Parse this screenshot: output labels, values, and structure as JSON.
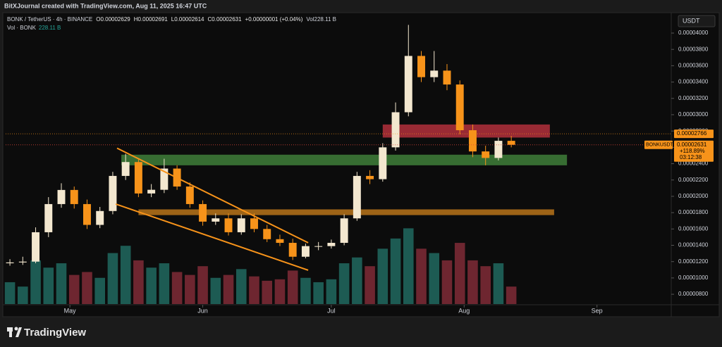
{
  "chart_data": {
    "type": "candlestick",
    "title": "BitXJournal created with TradingView.com, Aug 11, 2025 16:47 UTC",
    "symbol": "BONK / TetherUS · 4h · BINANCE",
    "legend": [
      "O0.00002629",
      "H0.00002691",
      "L0.00002614",
      "C0.00002631",
      "+0.00000001 (+0.04%)",
      "Vol228.11 B"
    ],
    "volume_label": "Vol · BONK",
    "volume_value": "228.11 B",
    "currency": "USDT",
    "brand": "TradingView",
    "up_color": "#f3e7cf",
    "down_color": "#f7931a",
    "volume_up_color": "#1d5b53",
    "volume_down_color": "#6e2630",
    "x": [
      -14,
      -11,
      -8,
      -5,
      -2,
      1,
      4,
      7,
      10,
      13,
      16,
      19,
      22,
      25,
      28,
      31,
      34,
      37,
      40,
      43,
      46,
      49,
      52,
      55,
      58,
      61,
      64,
      67,
      70,
      73,
      76,
      79,
      82,
      85,
      88,
      91,
      94,
      97,
      100,
      103
    ],
    "open": [
      1.18e-05,
      1.19e-05,
      1.2e-05,
      1.56e-05,
      1.905e-05,
      2.078e-05,
      1.905e-05,
      1.65e-05,
      1.82e-05,
      2.25e-05,
      2.42e-05,
      2.035e-05,
      2.08e-05,
      2.34e-05,
      2.12e-05,
      1.905e-05,
      1.69e-05,
      1.73e-05,
      1.56e-05,
      1.73e-05,
      1.6e-05,
      1.475e-05,
      1.43e-05,
      1.26e-05,
      1.39e-05,
      1.39e-05,
      1.43e-05,
      1.73e-05,
      2.25e-05,
      2.21e-05,
      2.6e-05,
      3.03e-05,
      3.72e-05,
      3.46e-05,
      3.54e-05,
      3.37e-05,
      2.81e-05,
      2.55e-05,
      2.47e-05,
      2.68e-05
    ],
    "high": [
      1.23e-05,
      1.26e-05,
      1.62e-05,
      1.99e-05,
      2.16e-05,
      2.12e-05,
      1.96e-05,
      1.87e-05,
      2.3e-05,
      2.52e-05,
      2.45e-05,
      2.15e-05,
      2.46e-05,
      2.38e-05,
      2.17e-05,
      1.95e-05,
      1.79e-05,
      1.79e-05,
      1.78e-05,
      1.79e-05,
      1.65e-05,
      1.53e-05,
      1.48e-05,
      1.42e-05,
      1.44e-05,
      1.47e-05,
      1.78e-05,
      2.3e-05,
      2.32e-05,
      2.65e-05,
      3.15e-05,
      4.1e-05,
      3.78e-05,
      3.78e-05,
      3.62e-05,
      3.42e-05,
      2.88e-05,
      2.62e-05,
      2.72e-05,
      2.74e-05
    ],
    "low": [
      1.15e-05,
      1.16e-05,
      1.18e-05,
      1.5e-05,
      1.86e-05,
      1.85e-05,
      1.6e-05,
      1.61e-05,
      1.78e-05,
      2.2e-05,
      1.99e-05,
      1.99e-05,
      2.04e-05,
      2.08e-05,
      1.86e-05,
      1.64e-05,
      1.65e-05,
      1.52e-05,
      1.53e-05,
      1.56e-05,
      1.44e-05,
      1.39e-05,
      1.22e-05,
      1.24e-05,
      1.34e-05,
      1.36e-05,
      1.4e-05,
      1.7e-05,
      2.15e-05,
      2.18e-05,
      2.56e-05,
      2.98e-05,
      3.4e-05,
      3.4e-05,
      3.3e-05,
      2.76e-05,
      2.48e-05,
      2.38e-05,
      2.44e-05,
      2.6e-05
    ],
    "close": [
      1.19e-05,
      1.2e-05,
      1.56e-05,
      1.905e-05,
      2.078e-05,
      1.905e-05,
      1.65e-05,
      1.82e-05,
      2.25e-05,
      2.42e-05,
      2.035e-05,
      2.08e-05,
      2.34e-05,
      2.12e-05,
      1.905e-05,
      1.69e-05,
      1.73e-05,
      1.56e-05,
      1.73e-05,
      1.6e-05,
      1.475e-05,
      1.43e-05,
      1.26e-05,
      1.39e-05,
      1.39e-05,
      1.43e-05,
      1.73e-05,
      2.25e-05,
      2.21e-05,
      2.6e-05,
      3.03e-05,
      3.72e-05,
      3.46e-05,
      3.54e-05,
      3.37e-05,
      2.81e-05,
      2.55e-05,
      2.47e-05,
      2.68e-05,
      2.631e-05
    ],
    "volume": [
      150,
      120,
      300,
      250,
      280,
      200,
      220,
      180,
      350,
      400,
      300,
      250,
      280,
      220,
      200,
      260,
      180,
      200,
      240,
      190,
      160,
      170,
      230,
      180,
      150,
      170,
      280,
      320,
      260,
      380,
      450,
      520,
      380,
      350,
      300,
      420,
      300,
      260,
      280,
      120
    ],
    "xlim": [
      -15,
      140
    ],
    "xticks": [
      {
        "value": 0,
        "label": "May"
      },
      {
        "value": 31,
        "label": "Jun"
      },
      {
        "value": 61,
        "label": "Jul"
      },
      {
        "value": 92,
        "label": "Aug"
      },
      {
        "value": 123,
        "label": "Sep"
      }
    ],
    "ylim": [
      6.8e-06,
      4.25e-05
    ],
    "yticks": [
      {
        "value": 8e-06,
        "label": "0.00000800"
      },
      {
        "value": 1e-05,
        "label": "0.00001000"
      },
      {
        "value": 1.2e-05,
        "label": "0.00001200"
      },
      {
        "value": 1.4e-05,
        "label": "0.00001400"
      },
      {
        "value": 1.6e-05,
        "label": "0.00001600"
      },
      {
        "value": 1.8e-05,
        "label": "0.00001800"
      },
      {
        "value": 2e-05,
        "label": "0.00002000"
      },
      {
        "value": 2.2e-05,
        "label": "0.00002200"
      },
      {
        "value": 2.4e-05,
        "label": "0.00002400"
      },
      {
        "value": 2.6e-05,
        "label": "0.00002600"
      },
      {
        "value": 2.8e-05,
        "label": "0.00002800"
      },
      {
        "value": 3e-05,
        "label": "0.00003000"
      },
      {
        "value": 3.2e-05,
        "label": "0.00003200"
      },
      {
        "value": 3.4e-05,
        "label": "0.00003400"
      },
      {
        "value": 3.6e-05,
        "label": "0.00003600"
      },
      {
        "value": 3.8e-05,
        "label": "0.00003800"
      },
      {
        "value": 4e-05,
        "label": "0.00004000"
      }
    ],
    "y2lim": [
      0,
      2000
    ],
    "grid": false,
    "zones": [
      {
        "x": [
          73,
          112
        ],
        "y": [
          2.72e-05,
          2.88e-05
        ],
        "color": "#b3303c"
      },
      {
        "x": [
          12,
          116
        ],
        "y": [
          2.38e-05,
          2.51e-05
        ],
        "color": "#3f7f3a"
      },
      {
        "x": [
          16,
          113
        ],
        "y": [
          1.77e-05,
          1.84e-05
        ],
        "color": "#b8741a"
      }
    ],
    "trendlines": [
      {
        "x": [
          11,
          55.6
        ],
        "y": [
          2.59e-05,
          1.431e-05
        ],
        "color": "#f7931a"
      },
      {
        "x": [
          10.7,
          55.6
        ],
        "y": [
          1.905e-05,
          1.095e-05
        ],
        "color": "#f7931a"
      }
    ],
    "price_line": {
      "value": 2.766e-05,
      "label": "0.00002766",
      "color": "#f7931a"
    },
    "last_price": {
      "value": 2.631e-05,
      "symbol": "BONKUSDT",
      "label": "0.00002631",
      "change": "+118.89%",
      "countdown": "03:12:38",
      "color": "#f7931a"
    }
  }
}
